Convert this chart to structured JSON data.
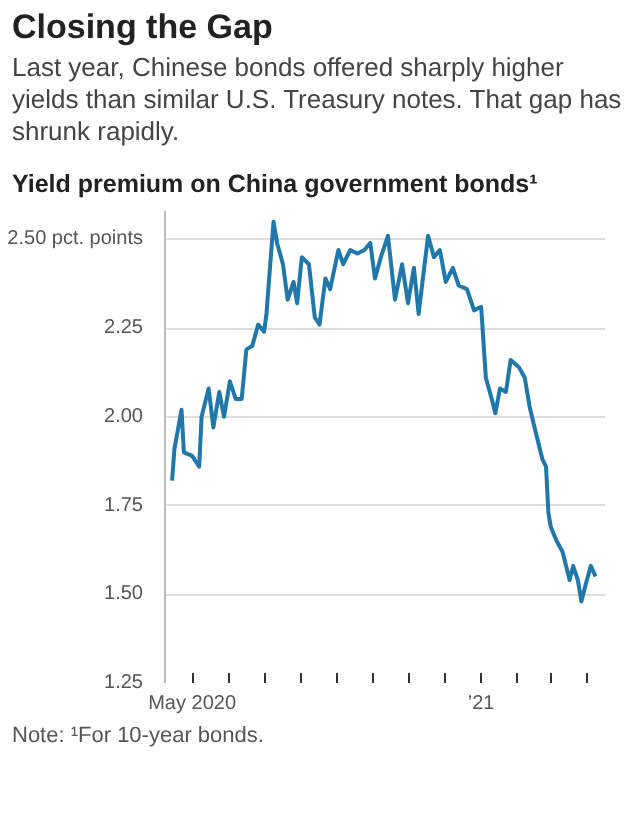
{
  "chart_data": {
    "type": "line",
    "title": "Closing the Gap",
    "subtitle": "Last year, Chinese bonds offered sharply higher yields than similar U.S. Treasury notes. That gap has shrunk rapidly.",
    "ylabel": "Yield premium on China government bonds¹",
    "annotations": [
      "Note: ¹For 10-year bonds."
    ],
    "x": [
      "2020-04-14",
      "2020-04-16",
      "2020-04-22",
      "2020-04-24",
      "2020-05-01",
      "2020-05-07",
      "2020-05-09",
      "2020-05-15",
      "2020-05-19",
      "2020-05-24",
      "2020-05-28",
      "2020-06-02",
      "2020-06-07",
      "2020-06-12",
      "2020-06-16",
      "2020-06-21",
      "2020-06-26",
      "2020-07-01",
      "2020-07-03",
      "2020-07-09",
      "2020-07-12",
      "2020-07-17",
      "2020-07-21",
      "2020-07-26",
      "2020-07-29",
      "2020-08-02",
      "2020-08-08",
      "2020-08-13",
      "2020-08-17",
      "2020-08-22",
      "2020-08-26",
      "2020-09-02",
      "2020-09-06",
      "2020-09-12",
      "2020-09-18",
      "2020-09-24",
      "2020-09-29",
      "2020-10-03",
      "2020-10-08",
      "2020-10-14",
      "2020-10-20",
      "2020-10-26",
      "2020-10-31",
      "2020-11-05",
      "2020-11-09",
      "2020-11-17",
      "2020-11-22",
      "2020-11-27",
      "2020-12-02",
      "2020-12-08",
      "2020-12-13",
      "2020-12-20",
      "2020-12-26",
      "2021-01-01",
      "2021-01-05",
      "2021-01-10",
      "2021-01-13",
      "2021-01-17",
      "2021-01-22",
      "2021-01-26",
      "2021-02-02",
      "2021-02-07",
      "2021-02-11",
      "2021-02-16",
      "2021-02-22",
      "2021-02-25",
      "2021-02-27",
      "2021-03-01",
      "2021-03-06",
      "2021-03-11",
      "2021-03-17",
      "2021-03-20",
      "2021-03-24",
      "2021-03-27",
      "2021-03-30",
      "2021-04-04",
      "2021-04-08"
    ],
    "series": [
      {
        "color": "#1f77aa",
        "values": [
          1.82,
          1.91,
          2.02,
          1.9,
          1.89,
          1.86,
          2.0,
          2.08,
          1.97,
          2.07,
          2.0,
          2.1,
          2.05,
          2.05,
          2.19,
          2.2,
          2.26,
          2.24,
          2.29,
          2.55,
          2.49,
          2.43,
          2.33,
          2.38,
          2.32,
          2.45,
          2.43,
          2.28,
          2.26,
          2.39,
          2.36,
          2.47,
          2.43,
          2.47,
          2.46,
          2.47,
          2.49,
          2.39,
          2.45,
          2.51,
          2.33,
          2.43,
          2.32,
          2.42,
          2.29,
          2.51,
          2.45,
          2.47,
          2.38,
          2.42,
          2.37,
          2.36,
          2.3,
          2.31,
          2.11,
          2.05,
          2.01,
          2.08,
          2.07,
          2.16,
          2.14,
          2.11,
          2.03,
          1.96,
          1.88,
          1.86,
          1.73,
          1.69,
          1.65,
          1.62,
          1.54,
          1.58,
          1.54,
          1.48,
          1.52,
          1.58,
          1.55
        ]
      }
    ],
    "xlim": [
      "2020-04-08",
      "2021-04-16"
    ],
    "xticks": [
      {
        "value": "2020-05-01",
        "label": "May 2020"
      },
      {
        "value": "2020-06-01",
        "label": null
      },
      {
        "value": "2020-07-01",
        "label": null
      },
      {
        "value": "2020-08-01",
        "label": null
      },
      {
        "value": "2020-09-01",
        "label": null
      },
      {
        "value": "2020-10-01",
        "label": null
      },
      {
        "value": "2020-11-01",
        "label": null
      },
      {
        "value": "2020-12-01",
        "label": null
      },
      {
        "value": "2021-01-01",
        "label": "’21"
      },
      {
        "value": "2021-02-01",
        "label": null
      },
      {
        "value": "2021-03-01",
        "label": null
      },
      {
        "value": "2021-04-01",
        "label": null
      }
    ],
    "ylim": [
      1.25,
      2.58
    ],
    "yticks": [
      {
        "value": 1.25,
        "label": "1.25"
      },
      {
        "value": 1.5,
        "label": "1.50"
      },
      {
        "value": 1.75,
        "label": "1.75"
      },
      {
        "value": 2.0,
        "label": "2.00"
      },
      {
        "value": 2.25,
        "label": "2.25"
      },
      {
        "value": 2.5,
        "label": "2.50 pct. points"
      }
    ],
    "grid": "y",
    "line_style": "solid"
  }
}
